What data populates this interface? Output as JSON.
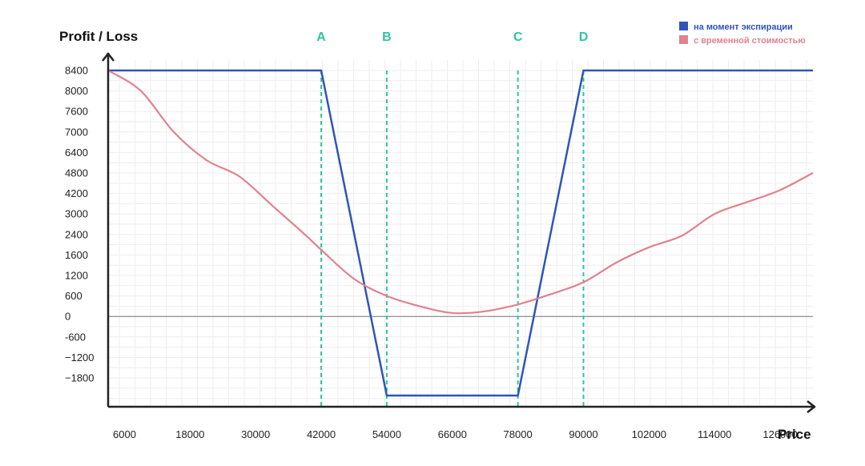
{
  "colors": {
    "expiry": "#2f55b8",
    "time_value": "#e0828f",
    "marker": "#2ec4a0",
    "grid": "#eeeeee",
    "axis": "#222222",
    "zero_line": "#777777"
  },
  "chart_data": {
    "type": "line",
    "ylabel": "Profit / Loss",
    "xlabel": "Price",
    "ytick_labels": [
      "8400",
      "8000",
      "7600",
      "7000",
      "6400",
      "4800",
      "4200",
      "3000",
      "2400",
      "1600",
      "1200",
      "600",
      "0",
      "-600",
      "−1200",
      "−1800"
    ],
    "xtick_labels": [
      "6000",
      "18000",
      "30000",
      "42000",
      "54000",
      "66000",
      "78000",
      "90000",
      "102000",
      "114000",
      "126000"
    ],
    "x_positions": [
      6000,
      18000,
      30000,
      42000,
      54000,
      66000,
      78000,
      90000,
      102000,
      114000,
      126000
    ],
    "xlim": [
      3000,
      132000
    ],
    "grid": true,
    "legend_position": "top-right",
    "series": [
      {
        "name": "на момент экспирации",
        "color": "#2f55b8",
        "points": [
          [
            3000,
            8400
          ],
          [
            42000,
            8400
          ],
          [
            54000,
            -2400
          ],
          [
            78000,
            -2400
          ],
          [
            90000,
            8400
          ],
          [
            132000,
            8400
          ]
        ]
      },
      {
        "name": "с временной стоимостью",
        "color": "#e0828f",
        "points": [
          [
            3000,
            8400
          ],
          [
            9000,
            8000
          ],
          [
            15000,
            7000
          ],
          [
            21000,
            5800
          ],
          [
            27000,
            4700
          ],
          [
            33000,
            3500
          ],
          [
            39000,
            2400
          ],
          [
            42000,
            1800
          ],
          [
            48000,
            1100
          ],
          [
            54000,
            600
          ],
          [
            60000,
            300
          ],
          [
            66000,
            100
          ],
          [
            72000,
            150
          ],
          [
            78000,
            350
          ],
          [
            84000,
            650
          ],
          [
            90000,
            1000
          ],
          [
            96000,
            1450
          ],
          [
            102000,
            1900
          ],
          [
            108000,
            2350
          ],
          [
            114000,
            3000
          ],
          [
            120000,
            3700
          ],
          [
            126000,
            4300
          ],
          [
            132000,
            4800
          ]
        ]
      }
    ],
    "markers": [
      {
        "label": "A",
        "x": 42000
      },
      {
        "label": "B",
        "x": 54000
      },
      {
        "label": "C",
        "x": 78000
      },
      {
        "label": "D",
        "x": 90000
      }
    ]
  }
}
